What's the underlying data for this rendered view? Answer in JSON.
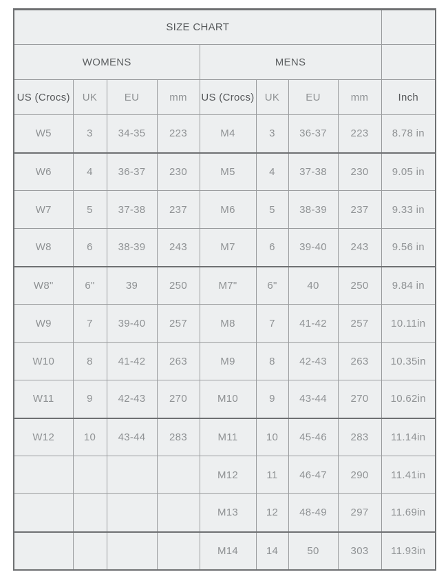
{
  "colors": {
    "cell_background": "#edeff0",
    "border": "#9a9c9e",
    "border_strong": "#6e7072",
    "text_dark": "#57595b",
    "text_light": "#8f9294"
  },
  "chart_data": {
    "type": "table",
    "title": "SIZE CHART",
    "groups": {
      "womens": "WOMENS",
      "mens": "MENS"
    },
    "columns": {
      "womens": [
        "US (Crocs)",
        "UK",
        "EU",
        "mm"
      ],
      "mens": [
        "US (Crocs)",
        "UK",
        "EU",
        "mm"
      ],
      "inch": "Inch"
    },
    "rows": [
      {
        "womens": [
          "W5",
          "3",
          "34-35",
          "223"
        ],
        "mens": [
          "M4",
          "3",
          "36-37",
          "223"
        ],
        "inch": "8.78 in"
      },
      {
        "womens": [
          "W6",
          "4",
          "36-37",
          "230"
        ],
        "mens": [
          "M5",
          "4",
          "37-38",
          "230"
        ],
        "inch": "9.05 in"
      },
      {
        "womens": [
          "W7",
          "5",
          "37-38",
          "237"
        ],
        "mens": [
          "M6",
          "5",
          "38-39",
          "237"
        ],
        "inch": "9.33 in"
      },
      {
        "womens": [
          "W8",
          "6",
          "38-39",
          "243"
        ],
        "mens": [
          "M7",
          "6",
          "39-40",
          "243"
        ],
        "inch": "9.56 in"
      },
      {
        "womens": [
          "W8\"",
          "6\"",
          "39",
          "250"
        ],
        "mens": [
          "M7\"",
          "6\"",
          "40",
          "250"
        ],
        "inch": "9.84 in"
      },
      {
        "womens": [
          "W9",
          "7",
          "39-40",
          "257"
        ],
        "mens": [
          "M8",
          "7",
          "41-42",
          "257"
        ],
        "inch": "10.11in"
      },
      {
        "womens": [
          "W10",
          "8",
          "41-42",
          "263"
        ],
        "mens": [
          "M9",
          "8",
          "42-43",
          "263"
        ],
        "inch": "10.35in"
      },
      {
        "womens": [
          "W11",
          "9",
          "42-43",
          "270"
        ],
        "mens": [
          "M10",
          "9",
          "43-44",
          "270"
        ],
        "inch": "10.62in"
      },
      {
        "womens": [
          "W12",
          "10",
          "43-44",
          "283"
        ],
        "mens": [
          "M11",
          "10",
          "45-46",
          "283"
        ],
        "inch": "11.14in"
      },
      {
        "womens": [
          "",
          "",
          "",
          ""
        ],
        "mens": [
          "M12",
          "11",
          "46-47",
          "290"
        ],
        "inch": "11.41in"
      },
      {
        "womens": [
          "",
          "",
          "",
          ""
        ],
        "mens": [
          "M13",
          "12",
          "48-49",
          "297"
        ],
        "inch": "11.69in"
      },
      {
        "womens": [
          "",
          "",
          "",
          ""
        ],
        "mens": [
          "M14",
          "14",
          "50",
          "303"
        ],
        "inch": "11.93in"
      }
    ]
  }
}
